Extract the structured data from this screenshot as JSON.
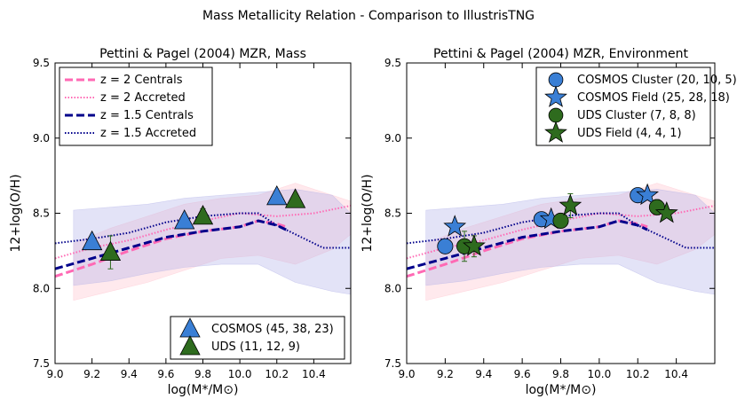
{
  "figure_title": "Mass Metallicity Relation - Comparison to IllustrisTNG",
  "colors": {
    "central_z2": "#ff69b4",
    "accreted_z2": "#ff69b4",
    "central_z15": "#00008b",
    "accreted_z15": "#00008b",
    "band_z2": "#ffc0cb",
    "band_z15": "#b0b0e8",
    "cosmos": "#3a7fd5",
    "uds": "#2e6b1e"
  },
  "chart_data": [
    {
      "type": "line",
      "panel": "left",
      "title": "Pettini & Pagel (2004) MZR, Mass",
      "xlabel": "log(M*/M⊙)",
      "ylabel": "12+log(O/H)",
      "xlim": [
        9.0,
        10.6
      ],
      "ylim": [
        7.5,
        9.5
      ],
      "xticks": [
        "9.0",
        "9.2",
        "9.4",
        "9.6",
        "9.8",
        "10.0",
        "10.2",
        "10.4"
      ],
      "yticks": [
        "7.5",
        "8.0",
        "8.5",
        "9.0",
        "9.5"
      ],
      "legend_top": [
        {
          "label": "z = 2 Centrals",
          "style": "dashed",
          "series": "central_z2"
        },
        {
          "label": "z = 2 Accreted",
          "style": "dotted",
          "series": "accreted_z2"
        },
        {
          "label": "z = 1.5 Centrals",
          "style": "dashed",
          "series": "central_z15"
        },
        {
          "label": "z = 1.5 Accreted",
          "style": "dotted",
          "series": "accreted_z15"
        }
      ],
      "legend_bottom": [
        {
          "label": "COSMOS (45, 38, 23)",
          "marker": "triangle",
          "series": "cosmos"
        },
        {
          "label": "UDS (11, 12, 9)",
          "marker": "triangle",
          "series": "uds"
        }
      ],
      "points": [
        {
          "series": "cosmos",
          "marker": "triangle",
          "x": 9.2,
          "y": 8.31,
          "err": 0.0
        },
        {
          "series": "cosmos",
          "marker": "triangle",
          "x": 9.7,
          "y": 8.45,
          "err": 0.0
        },
        {
          "series": "cosmos",
          "marker": "triangle",
          "x": 10.2,
          "y": 8.61,
          "err": 0.0
        },
        {
          "series": "uds",
          "marker": "triangle",
          "x": 9.3,
          "y": 8.24,
          "err": 0.11
        },
        {
          "series": "uds",
          "marker": "triangle",
          "x": 9.8,
          "y": 8.48,
          "err": 0.05
        },
        {
          "series": "uds",
          "marker": "triangle",
          "x": 10.3,
          "y": 8.59,
          "err": 0.04
        }
      ]
    },
    {
      "type": "line",
      "panel": "right",
      "title": "Pettini & Pagel (2004) MZR, Environment",
      "xlabel": "log(M*/M⊙)",
      "ylabel": "12+log(O/H)",
      "xlim": [
        9.0,
        10.6
      ],
      "ylim": [
        7.5,
        9.5
      ],
      "xticks": [
        "9.0",
        "9.2",
        "9.4",
        "9.6",
        "9.8",
        "10.0",
        "10.2",
        "10.4"
      ],
      "yticks": [
        "7.5",
        "8.0",
        "8.5",
        "9.0",
        "9.5"
      ],
      "legend_top": [
        {
          "label": "COSMOS Cluster (20, 10, 5)",
          "marker": "circle",
          "series": "cosmos"
        },
        {
          "label": "COSMOS Field (25, 28, 18)",
          "marker": "star",
          "series": "cosmos"
        },
        {
          "label": "UDS Cluster (7, 8, 8)",
          "marker": "circle",
          "series": "uds"
        },
        {
          "label": "UDS Field (4, 4, 1)",
          "marker": "star",
          "series": "uds"
        }
      ],
      "legend_bottom": [],
      "points": [
        {
          "series": "cosmos",
          "marker": "circle",
          "x": 9.2,
          "y": 8.28,
          "err": 0.03
        },
        {
          "series": "cosmos",
          "marker": "circle",
          "x": 9.7,
          "y": 8.46,
          "err": 0.02
        },
        {
          "series": "cosmos",
          "marker": "circle",
          "x": 10.2,
          "y": 8.62,
          "err": 0.02
        },
        {
          "series": "cosmos",
          "marker": "star",
          "x": 9.25,
          "y": 8.41,
          "err": 0.03
        },
        {
          "series": "cosmos",
          "marker": "star",
          "x": 9.75,
          "y": 8.46,
          "err": 0.02
        },
        {
          "series": "cosmos",
          "marker": "star",
          "x": 10.25,
          "y": 8.62,
          "err": 0.03
        },
        {
          "series": "uds",
          "marker": "circle",
          "x": 9.3,
          "y": 8.28,
          "err": 0.1
        },
        {
          "series": "uds",
          "marker": "circle",
          "x": 9.8,
          "y": 8.45,
          "err": 0.02
        },
        {
          "series": "uds",
          "marker": "circle",
          "x": 10.3,
          "y": 8.54,
          "err": 0.05
        },
        {
          "series": "uds",
          "marker": "star",
          "x": 9.35,
          "y": 8.28,
          "err": 0.07
        },
        {
          "series": "uds",
          "marker": "star",
          "x": 9.85,
          "y": 8.55,
          "err": 0.08
        },
        {
          "series": "uds",
          "marker": "star",
          "x": 10.35,
          "y": 8.5,
          "err": 0.03
        }
      ]
    }
  ],
  "model_series": [
    {
      "name": "central_z2",
      "style": "dashed",
      "x": [
        9.0,
        9.2,
        9.4,
        9.6,
        9.8,
        10.0,
        10.1,
        10.2,
        10.25
      ],
      "y": [
        8.08,
        8.16,
        8.25,
        8.33,
        8.38,
        8.41,
        8.45,
        8.43,
        8.41
      ]
    },
    {
      "name": "accreted_z2",
      "style": "dotted",
      "x": [
        9.0,
        9.2,
        9.4,
        9.6,
        9.8,
        10.0,
        10.2,
        10.4,
        10.6
      ],
      "y": [
        8.2,
        8.27,
        8.32,
        8.39,
        8.45,
        8.5,
        8.48,
        8.5,
        8.55
      ]
    },
    {
      "name": "central_z15",
      "style": "dashed",
      "x": [
        9.0,
        9.2,
        9.4,
        9.6,
        9.8,
        10.0,
        10.1,
        10.2,
        10.25
      ],
      "y": [
        8.13,
        8.2,
        8.27,
        8.34,
        8.38,
        8.41,
        8.45,
        8.42,
        8.39
      ]
    },
    {
      "name": "accreted_z15",
      "style": "dotted",
      "x": [
        9.0,
        9.2,
        9.4,
        9.6,
        9.8,
        10.0,
        10.1,
        10.2,
        10.3,
        10.45,
        10.6
      ],
      "y": [
        8.3,
        8.33,
        8.37,
        8.44,
        8.48,
        8.5,
        8.5,
        8.42,
        8.36,
        8.27,
        8.27
      ]
    }
  ],
  "bands": [
    {
      "name": "band_z2",
      "x": [
        9.1,
        9.3,
        9.5,
        9.7,
        9.9,
        10.1,
        10.3,
        10.5,
        10.6
      ],
      "upper": [
        8.3,
        8.4,
        8.48,
        8.56,
        8.6,
        8.62,
        8.7,
        8.62,
        8.58
      ],
      "lower": [
        7.92,
        7.98,
        8.04,
        8.12,
        8.2,
        8.22,
        8.16,
        8.26,
        8.36
      ]
    },
    {
      "name": "band_z15",
      "x": [
        9.1,
        9.3,
        9.5,
        9.7,
        9.9,
        10.1,
        10.3,
        10.5,
        10.6
      ],
      "upper": [
        8.52,
        8.54,
        8.56,
        8.6,
        8.62,
        8.64,
        8.66,
        8.62,
        8.5
      ],
      "lower": [
        8.02,
        8.05,
        8.1,
        8.14,
        8.16,
        8.16,
        8.04,
        7.98,
        7.96
      ]
    }
  ]
}
